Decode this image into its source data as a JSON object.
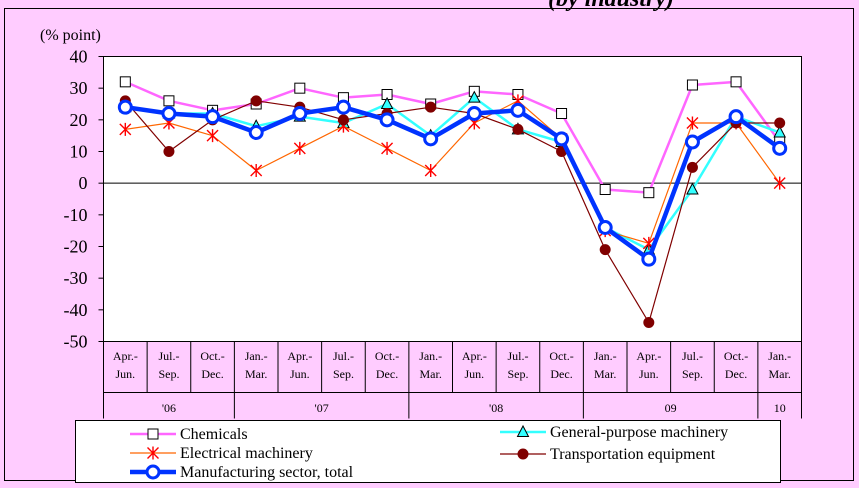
{
  "chart_data": {
    "type": "line",
    "header_text": "(by industry)",
    "ylabel": "(% point)",
    "xlabel": "",
    "ylim": [
      -50,
      40
    ],
    "yticks": [
      40,
      30,
      20,
      10,
      0,
      -10,
      -20,
      -30,
      -40,
      -50
    ],
    "grid": false,
    "legend_position": "bottom",
    "categories": [
      [
        "Apr.-",
        "Jun."
      ],
      [
        "Jul.-",
        "Sep."
      ],
      [
        "Oct.-",
        "Dec."
      ],
      [
        "Jan.-",
        "Mar."
      ],
      [
        "Apr.-",
        "Jun."
      ],
      [
        "Jul.-",
        "Sep."
      ],
      [
        "Oct.-",
        "Dec."
      ],
      [
        "Jan.-",
        "Mar."
      ],
      [
        "Apr.-",
        "Jun."
      ],
      [
        "Jul.-",
        "Sep."
      ],
      [
        "Oct.-",
        "Dec."
      ],
      [
        "Jan.-",
        "Mar."
      ],
      [
        "Apr.-",
        "Jun."
      ],
      [
        "Jul.-",
        "Sep."
      ],
      [
        "Oct.-",
        "Dec."
      ],
      [
        "Jan.-",
        "Mar."
      ]
    ],
    "years": [
      {
        "label": "'06",
        "start": 0,
        "count": 3
      },
      {
        "label": "'07",
        "start": 3,
        "count": 4
      },
      {
        "label": "'08",
        "start": 7,
        "count": 4
      },
      {
        "label": "09",
        "start": 11,
        "count": 4
      },
      {
        "label": "10",
        "start": 15,
        "count": 1
      }
    ],
    "series": [
      {
        "name": "Chemicals",
        "color": "#FF66FF",
        "marker": "square",
        "marker_fill": "#FFFFFF",
        "marker_stroke": "#000000",
        "line_width": 2.5,
        "values": [
          32,
          26,
          23,
          25,
          30,
          27,
          28,
          25,
          29,
          28,
          22,
          -2,
          -3,
          31,
          32,
          13
        ]
      },
      {
        "name": "General-purpose machinery",
        "color": "#33FFFF",
        "marker": "triangle",
        "marker_fill": "#33FFFF",
        "marker_stroke": "#000000",
        "line_width": 2.5,
        "values": [
          24,
          22,
          22,
          18,
          21,
          19,
          25,
          15,
          27,
          17,
          13,
          -14,
          -21,
          -2,
          21,
          16
        ]
      },
      {
        "name": "Electrical machinery",
        "color": "#FF6600",
        "marker": "star",
        "marker_fill": "none",
        "marker_stroke": "#FF0000",
        "line_width": 1.2,
        "values": [
          17,
          19,
          15,
          4,
          11,
          18,
          11,
          4,
          19,
          26,
          14,
          -15,
          -19,
          19,
          19,
          0
        ]
      },
      {
        "name": "Transportation equipment",
        "color": "#800000",
        "marker": "circle",
        "marker_fill": "#800000",
        "marker_stroke": "#800000",
        "line_width": 1.2,
        "values": [
          26,
          10,
          20,
          26,
          24,
          20,
          22,
          24,
          22,
          17,
          10,
          -21,
          -44,
          5,
          19,
          19
        ]
      },
      {
        "name": "Manufacturing sector, total",
        "color": "#0033FF",
        "marker": "circle",
        "marker_fill": "#FFFFFF",
        "marker_stroke": "#0033FF",
        "line_width": 4.5,
        "values": [
          24,
          22,
          21,
          16,
          22,
          24,
          20,
          14,
          22,
          23,
          14,
          -14,
          -24,
          13,
          21,
          11
        ]
      }
    ]
  }
}
